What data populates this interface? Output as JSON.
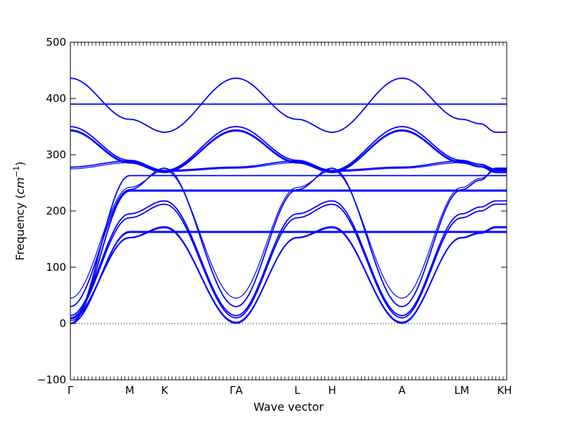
{
  "chart_data": {
    "type": "line",
    "xlabel": "Wave vector",
    "ylabel": "Frequency (cm⁻¹)",
    "ylabel_parts": {
      "prefix": "Frequency (",
      "unit": "cm",
      "superscript": "−1",
      "suffix": ")"
    },
    "ylim": [
      -100,
      500
    ],
    "yticks": [
      -100,
      0,
      100,
      200,
      300,
      400,
      500
    ],
    "ytick_labels": [
      "−100",
      "0",
      "100",
      "200",
      "300",
      "400",
      "500"
    ],
    "xlim": [
      0,
      1
    ],
    "grid": false,
    "legend": "none",
    "zero_line": {
      "y": 0,
      "style": "dotted"
    },
    "line_color": "#0000ff",
    "high_symmetry_points": [
      {
        "label": "Γ",
        "x": 0.0
      },
      {
        "label": "M",
        "x": 0.136
      },
      {
        "label": "K",
        "x": 0.216
      },
      {
        "label": "ΓA",
        "x": 0.38
      },
      {
        "label": "L",
        "x": 0.52
      },
      {
        "label": "H",
        "x": 0.6
      },
      {
        "label": "A",
        "x": 0.76
      },
      {
        "label": "LM",
        "x": 0.897
      },
      {
        "label": "KH",
        "x": 0.995
      }
    ],
    "branch_endpoints_note": "Frequencies (cm⁻¹) at high-symmetry points, read from the plot",
    "x_nodes": [
      0.0,
      0.136,
      0.216,
      0.38,
      0.52,
      0.6,
      0.76,
      0.897,
      0.94,
      0.975,
      1.0
    ],
    "series": [
      {
        "values": [
          5,
          152,
          170,
          0,
          152,
          170,
          0,
          152,
          160,
          170,
          170
        ]
      },
      {
        "values": [
          8,
          153,
          172,
          2,
          153,
          172,
          2,
          153,
          162,
          172,
          172
        ]
      },
      {
        "values": [
          0,
          162,
          162,
          162,
          162,
          162,
          162,
          162,
          162,
          162,
          162
        ]
      },
      {
        "values": [
          0,
          164,
          164,
          164,
          164,
          164,
          164,
          164,
          164,
          164,
          164
        ]
      },
      {
        "values": [
          10,
          188,
          212,
          10,
          188,
          212,
          10,
          188,
          200,
          212,
          212
        ]
      },
      {
        "values": [
          14,
          195,
          218,
          14,
          195,
          218,
          14,
          195,
          207,
          218,
          218
        ]
      },
      {
        "values": [
          0,
          235,
          235,
          235,
          235,
          235,
          235,
          235,
          235,
          235,
          235
        ]
      },
      {
        "values": [
          0,
          237,
          237,
          237,
          237,
          237,
          237,
          237,
          237,
          237,
          237
        ]
      },
      {
        "values": [
          30,
          238,
          276,
          30,
          238,
          276,
          30,
          238,
          255,
          276,
          276
        ]
      },
      {
        "values": [
          45,
          242,
          272,
          45,
          242,
          272,
          45,
          242,
          258,
          272,
          272
        ]
      },
      {
        "values": [
          0,
          263,
          263,
          263,
          263,
          263,
          263,
          263,
          263,
          263,
          263
        ]
      },
      {
        "values": [
          278,
          289,
          272,
          278,
          289,
          272,
          278,
          289,
          283,
          274,
          274
        ]
      },
      {
        "values": [
          275,
          286,
          270,
          276,
          286,
          270,
          276,
          286,
          280,
          272,
          272
        ]
      },
      {
        "values": [
          350,
          290,
          272,
          350,
          290,
          272,
          350,
          290,
          283,
          272,
          272
        ]
      },
      {
        "values": [
          344,
          287,
          270,
          344,
          287,
          270,
          344,
          287,
          280,
          270,
          270
        ]
      },
      {
        "values": [
          342,
          285,
          268,
          342,
          285,
          268,
          342,
          285,
          278,
          268,
          268
        ]
      },
      {
        "values": [
          390,
          390,
          390,
          390,
          390,
          390,
          390,
          390,
          390,
          390,
          390
        ]
      },
      {
        "values": [
          436,
          363,
          340,
          436,
          363,
          340,
          436,
          363,
          355,
          340,
          340
        ]
      }
    ]
  }
}
